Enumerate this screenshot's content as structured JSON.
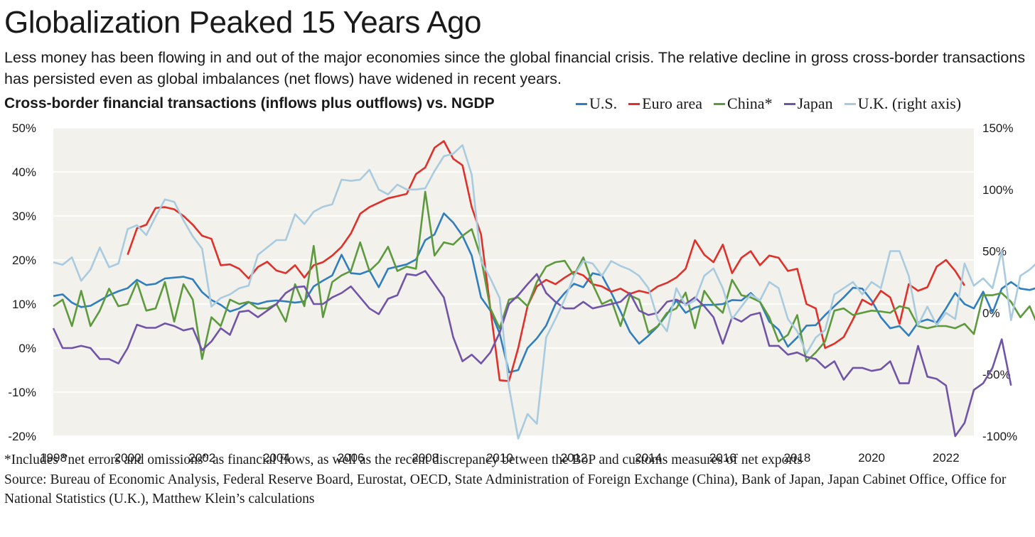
{
  "title": "Globalization Peaked 15 Years Ago",
  "subtitle": "Less money has been flowing in and out of the major economies since the global financial crisis. The relative decline in gross cross-border transactions has persisted even as global imbalances (net flows) have widened in recent years.",
  "chart_header": "Cross-border financial transactions (inflows plus outflows) vs. NGDP",
  "footnotes": {
    "note": "*Includes ”net errors and omissions” as financial flows, as well as the recent discrepancy between the BoP and customs measures of net exports",
    "source": "Source: Bureau of Economic Analysis, Federal Reserve Board, Eurostat, OECD, State Administration of Foreign Exchange (China), Bank of Japan, Japan Cabinet Office, Office for National Statistics (U.K.), Matthew Klein’s calculations"
  },
  "chart_data": {
    "type": "line",
    "title": "Globalization Peaked 15 Years Ago",
    "xlabel": "",
    "ylabel": "",
    "x_ticks": [
      "1998",
      "2000",
      "2002",
      "2004",
      "2006",
      "2008",
      "2010",
      "2012",
      "2014",
      "2016",
      "2018",
      "2020",
      "2022"
    ],
    "xlim": [
      1998,
      2022.75
    ],
    "ylim": [
      -20,
      50
    ],
    "y_ticks": [
      "50%",
      "40%",
      "30%",
      "20%",
      "10%",
      "0%",
      "-10%",
      "-20%"
    ],
    "y2lim": [
      -100,
      150
    ],
    "y2_ticks": [
      "150%",
      "100%",
      "50%",
      "0%",
      "-50%",
      "-100%"
    ],
    "grid": "horizontal",
    "legend_position": "top-right",
    "background": "#f3f1ec",
    "series": [
      {
        "name": "U.S.",
        "color": "#2f7ebf",
        "axis": "left",
        "start": 1998,
        "values": [
          11.8,
          12.2,
          10.3,
          9.3,
          9.6,
          10.8,
          12.0,
          12.9,
          13.6,
          15.5,
          14.3,
          14.6,
          15.8,
          16.0,
          16.2,
          15.6,
          12.7,
          10.9,
          9.8,
          8.3,
          9.0,
          10.4,
          10.0,
          10.6,
          10.8,
          10.6,
          10.3,
          10.6,
          14.0,
          15.3,
          16.5,
          21.2,
          17.0,
          16.8,
          17.6,
          13.8,
          18.0,
          18.5,
          19.0,
          20.1,
          24.5,
          25.8,
          30.6,
          28.5,
          25.5,
          21.0,
          11.5,
          8.5,
          3.3,
          -5.5,
          -5.0,
          0.0,
          2.2,
          5.1,
          10.0,
          12.5,
          14.6,
          13.8,
          17.0,
          16.5,
          12.6,
          8.3,
          3.7,
          1.0,
          2.8,
          4.9,
          7.7,
          10.8,
          8.0,
          9.2,
          9.8,
          9.8,
          10.0,
          10.9,
          10.8,
          12.5,
          10.5,
          6.0,
          4.2,
          0.3,
          2.4,
          5.1,
          5.2,
          7.5,
          9.5,
          11.5,
          13.7,
          13.5,
          10.8,
          7.0,
          4.5,
          5.0,
          2.8,
          5.8,
          6.5,
          5.8,
          9.0,
          12.5,
          10.0,
          9.0,
          12.8,
          8.0,
          13.5,
          15.0,
          13.5,
          13.2,
          13.8,
          13.2
        ]
      },
      {
        "name": "Euro area",
        "color": "#e0302a",
        "axis": "left",
        "start": 2000,
        "values": [
          21.2,
          27.2,
          28.0,
          31.8,
          32.0,
          31.5,
          30.0,
          28.0,
          25.5,
          24.8,
          18.8,
          19.0,
          18.0,
          15.8,
          18.4,
          19.6,
          17.6,
          17.0,
          18.8,
          16.0,
          18.8,
          19.5,
          21.0,
          23.0,
          26.0,
          30.5,
          32.0,
          33.0,
          34.0,
          34.5,
          35.0,
          39.5,
          41.0,
          45.5,
          47.0,
          43.0,
          41.5,
          32.0,
          25.8,
          9.0,
          -7.3,
          -7.5,
          0.0,
          9.5,
          14.0,
          15.5,
          14.5,
          16.0,
          17.3,
          16.5,
          14.5,
          14.0,
          12.8,
          13.5,
          12.3,
          13.0,
          12.5,
          14.0,
          14.8,
          16.0,
          18.0,
          24.5,
          21.2,
          19.5,
          23.5,
          17.0,
          20.5,
          22.0,
          18.8,
          21.0,
          20.5,
          17.5,
          18.0,
          10.0,
          9.0,
          0.0,
          1.0,
          2.5,
          6.5,
          11.0,
          9.8,
          13.0,
          11.5,
          5.5,
          14.5,
          13.0,
          13.8,
          18.5,
          20.0,
          17.5,
          14.2
        ]
      },
      {
        "name": "China*",
        "color": "#5c9a3d",
        "axis": "left",
        "start": 1998,
        "values": [
          9.5,
          11.0,
          5.0,
          13.0,
          5.0,
          8.5,
          13.5,
          9.5,
          10.0,
          15.0,
          8.5,
          9.0,
          15.0,
          6.0,
          14.5,
          11.0,
          -2.5,
          7.0,
          5.0,
          11.0,
          10.0,
          10.5,
          9.0,
          9.0,
          10.0,
          6.0,
          14.5,
          9.5,
          23.2,
          7.0,
          15.0,
          16.5,
          17.5,
          24.0,
          17.5,
          19.5,
          23.0,
          17.5,
          18.5,
          18.0,
          35.5,
          21.0,
          24.0,
          23.5,
          25.5,
          27.0,
          20.5,
          9.0,
          4.5,
          11.0,
          11.5,
          9.5,
          15.0,
          18.5,
          19.5,
          19.8,
          16.5,
          20.6,
          14.5,
          10.0,
          11.0,
          5.0,
          12.0,
          11.0,
          3.5,
          5.0,
          8.0,
          9.0,
          12.6,
          4.5,
          13.0,
          10.0,
          8.0,
          15.5,
          12.0,
          11.5,
          10.5,
          7.0,
          1.5,
          3.0,
          7.5,
          -3.0,
          -1.0,
          1.5,
          8.5,
          9.0,
          7.5,
          8.0,
          8.5,
          8.3,
          8.0,
          9.5,
          9.0,
          5.0,
          4.5,
          5.0,
          5.0,
          4.5,
          5.5,
          3.2,
          12.0,
          12.0,
          12.5,
          10.5,
          7.0,
          9.5,
          4.5,
          3.9,
          1.5
        ]
      },
      {
        "name": "Japan",
        "color": "#7054a8",
        "axis": "left",
        "start": 1998,
        "values": [
          4.5,
          0.0,
          0.0,
          0.5,
          0.0,
          -2.5,
          -2.5,
          -3.5,
          0.0,
          5.3,
          4.6,
          4.6,
          5.6,
          5.0,
          4.0,
          4.5,
          -0.5,
          1.5,
          4.5,
          3.0,
          8.2,
          8.5,
          7.0,
          8.5,
          10.0,
          12.5,
          13.8,
          14.0,
          10.0,
          10.0,
          11.5,
          12.5,
          14.0,
          11.5,
          9.0,
          7.7,
          11.2,
          12.0,
          16.8,
          16.5,
          17.5,
          14.5,
          11.5,
          2.5,
          -3.0,
          -1.5,
          -3.5,
          -1.0,
          3.5,
          10.0,
          12.0,
          14.5,
          16.8,
          12.5,
          10.5,
          9.0,
          9.0,
          10.5,
          9.0,
          9.5,
          10.0,
          10.5,
          12.5,
          8.5,
          7.5,
          8.0,
          10.5,
          11.0,
          10.0,
          11.5,
          9.5,
          7.0,
          1.0,
          7.0,
          6.0,
          7.5,
          8.0,
          0.5,
          0.5,
          -1.5,
          -1.0,
          -2.0,
          -2.5,
          -4.5,
          -3.0,
          -7.2,
          -4.5,
          -4.5,
          -5.2,
          -4.8,
          -3.0,
          -8.0,
          -8.0,
          0.5,
          -6.5,
          -7.0,
          -8.5,
          -20.0,
          -17.0,
          -9.5,
          -8.0,
          -4.5,
          2.0,
          -8.5
        ]
      },
      {
        "name": "U.K. (right axis)",
        "color": "#a9cbe0",
        "axis": "right",
        "start": 1998,
        "values": [
          41,
          39,
          45,
          26,
          35,
          53,
          37,
          40,
          68,
          71,
          63,
          78,
          92,
          90,
          75,
          62,
          52,
          5,
          12,
          15,
          20,
          22,
          47,
          53,
          59,
          59,
          80,
          72,
          82,
          86,
          88,
          108,
          107,
          108,
          116,
          100,
          96,
          104,
          100,
          100,
          101,
          115,
          127,
          129,
          136,
          112,
          42,
          28,
          12,
          -60,
          -102,
          -82,
          -90,
          -20,
          -5,
          11,
          30,
          42,
          40,
          30,
          42,
          38,
          35,
          30,
          20,
          -5,
          -15,
          20,
          6,
          10,
          30,
          36,
          20,
          -5,
          5,
          15,
          10,
          25,
          20,
          -5,
          -15,
          -33,
          -20,
          -14,
          15,
          20,
          25,
          15,
          25,
          20,
          50,
          50,
          30,
          -10,
          5,
          -10,
          0,
          -5,
          40,
          22,
          28,
          20,
          50,
          -6,
          30,
          35,
          42,
          30,
          40,
          46,
          40
        ]
      }
    ]
  }
}
